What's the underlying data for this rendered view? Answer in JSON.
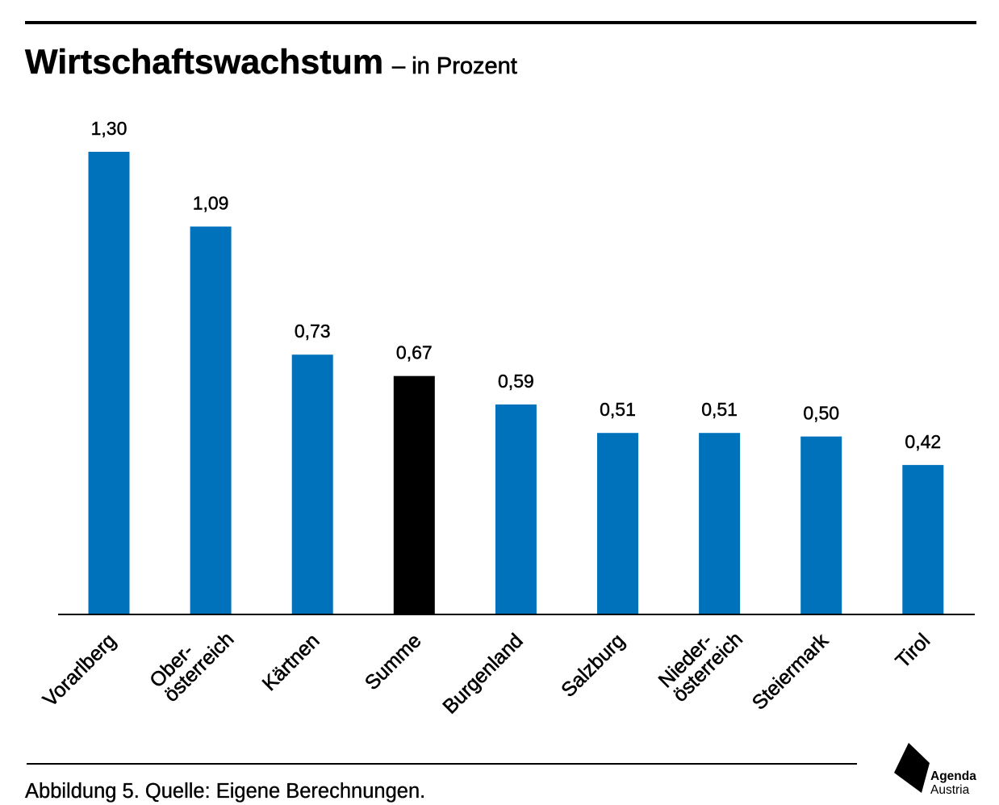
{
  "chart_data": {
    "type": "bar",
    "title": "Wirtschaftswachstum",
    "subtitle": "– in Prozent",
    "categories": [
      [
        "Vorarlberg"
      ],
      [
        "Ober-",
        "österreich"
      ],
      [
        "Kärtnen"
      ],
      [
        "Summe"
      ],
      [
        "Burgenland"
      ],
      [
        "Salzburg"
      ],
      [
        "Nieder-",
        "österreich"
      ],
      [
        "Steiermark"
      ],
      [
        "Tirol"
      ]
    ],
    "values": [
      1.3,
      1.09,
      0.73,
      0.67,
      0.59,
      0.51,
      0.51,
      0.5,
      0.42
    ],
    "value_labels": [
      "1,30",
      "1,09",
      "0,73",
      "0,67",
      "0,59",
      "0,51",
      "0,51",
      "0,50",
      "0,42"
    ],
    "bar_colors": [
      "#0072bc",
      "#0072bc",
      "#0072bc",
      "#000000",
      "#0072bc",
      "#0072bc",
      "#0072bc",
      "#0072bc",
      "#0072bc"
    ],
    "ylim": [
      0,
      1.3
    ],
    "grid": false,
    "legend": "none"
  },
  "footer": {
    "caption": "Abbildung 5. Quelle: Eigene Berechnungen."
  },
  "logo": {
    "icon": "agenda-austria-logo",
    "line1": "Agenda",
    "line2": "Austria"
  },
  "colors": {
    "accent": "#0072bc",
    "highlight": "#000000",
    "text": "#000000",
    "background": "#ffffff"
  }
}
